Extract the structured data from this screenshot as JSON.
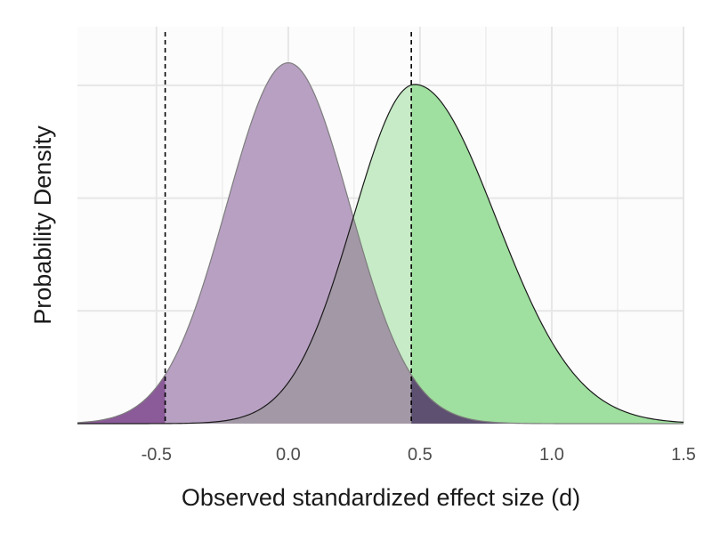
{
  "chart_data": {
    "type": "area",
    "title": "",
    "xlabel": "Observed standardized effect size (d)",
    "ylabel": "Probability Density",
    "xlim": [
      -0.8,
      1.5
    ],
    "x_ticks": [
      -0.5,
      0.0,
      0.5,
      1.0,
      1.5
    ],
    "x_tick_labels": [
      "-0.5",
      "0.0",
      "0.5",
      "1.0",
      "1.5"
    ],
    "ylim": [
      0,
      1.1
    ],
    "y_gridlines": [
      0.3125,
      0.625,
      0.9375
    ],
    "y_tick_labels_shown": false,
    "grid": true,
    "legend": "none",
    "critical_values": [
      -0.467,
      0.467
    ],
    "series": [
      {
        "mean": 0.0,
        "sd": 0.2335,
        "peak_density": 1.0,
        "colors": {
          "fill": "#b8a0c3",
          "tail": "#8b5a98",
          "line": "#7d7d7d"
        }
      },
      {
        "mean": 0.48,
        "sd": 0.2335,
        "peak_density": 0.94,
        "right_skew": 0.32,
        "colors": {
          "fill": "#9fdf9f",
          "overlap": "#a398a6",
          "light": "#c6ebc6",
          "tail": "#5e5070",
          "line": "#1a1a1a"
        }
      }
    ],
    "colors": {
      "panel_background": "#fcfcfc",
      "grid": "#e6e6e6",
      "critical_line": "#000000"
    }
  }
}
